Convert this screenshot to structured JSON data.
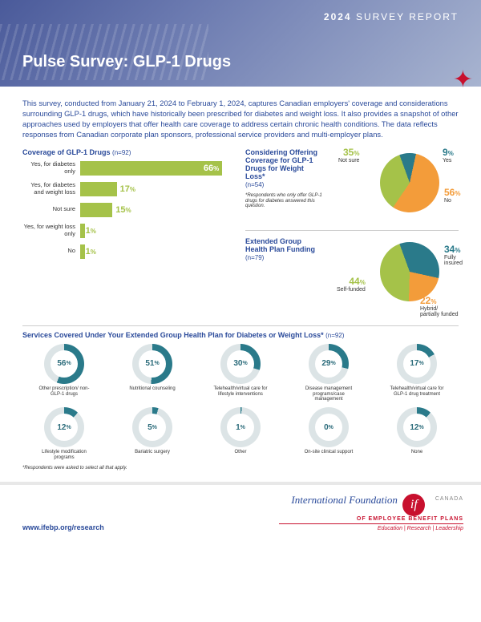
{
  "header": {
    "year": "2024",
    "label": "SURVEY REPORT",
    "title": "Pulse Survey: GLP-1 Drugs"
  },
  "intro": "This survey, conducted from January 21, 2024 to February 1, 2024, captures Canadian employers' coverage and considerations surrounding GLP-1 drugs, which have historically been prescribed for diabetes and weight loss. It also provides a snapshot of other approaches used by employers that offer health care coverage to address certain chronic health conditions. The data reflects responses from Canadian corporate plan sponsors, professional service providers and multi-employer plans.",
  "coverage": {
    "title": "Coverage of GLP-1 Drugs",
    "n": "(n=92)",
    "bar_color": "#a5c249",
    "max": 70,
    "items": [
      {
        "label": "Yes, for diabetes only",
        "value": 66,
        "inside": true
      },
      {
        "label": "Yes, for diabetes and weight loss",
        "value": 17,
        "inside": false
      },
      {
        "label": "Not sure",
        "value": 15,
        "inside": false
      },
      {
        "label": "Yes, for weight loss only",
        "value": 1,
        "inside": false
      },
      {
        "label": "No",
        "value": 1,
        "inside": false
      }
    ]
  },
  "pie1": {
    "title": "Considering Offering Coverage for GLP-1 Drugs for Weight Loss*",
    "n": "(n=54)",
    "footnote": "*Respondents who only offer GLP-1 drugs for diabetes answered this question.",
    "slices": [
      {
        "label": "Yes",
        "value": 9,
        "color": "#2a7a8a"
      },
      {
        "label": "No",
        "value": 56,
        "color": "#f39c3a"
      },
      {
        "label": "Not sure",
        "value": 35,
        "color": "#a5c249"
      }
    ]
  },
  "pie2": {
    "title": "Extended Group Health Plan Funding",
    "n": "(n=79)",
    "slices": [
      {
        "label": "Fully insured",
        "value": 34,
        "color": "#2a7a8a"
      },
      {
        "label": "Hybrid/ partially funded",
        "value": 22,
        "color": "#f39c3a"
      },
      {
        "label": "Self-funded",
        "value": 44,
        "color": "#a5c249"
      }
    ]
  },
  "services": {
    "title": "Services Covered Under Your Extended Group Health Plan for Diabetes or Weight Loss*",
    "n": "(n=92)",
    "footnote": "*Respondents were asked to select all that apply.",
    "fill_color": "#2a7a8a",
    "track_color": "#dce4e6",
    "row1": [
      {
        "label": "Other prescription/ non-GLP-1 drugs",
        "value": 56
      },
      {
        "label": "Nutritional counseling",
        "value": 51
      },
      {
        "label": "Telehealth/virtual care for lifestyle interventions",
        "value": 30
      },
      {
        "label": "Disease management programs/case management",
        "value": 29
      },
      {
        "label": "Telehealth/virtual care for GLP-1 drug treatment",
        "value": 17
      }
    ],
    "row2": [
      {
        "label": "Lifestyle modification programs",
        "value": 12
      },
      {
        "label": "Bariatric surgery",
        "value": 5
      },
      {
        "label": "Other",
        "value": 1
      },
      {
        "label": "On-site clinical support",
        "value": 0
      },
      {
        "label": "None",
        "value": 12
      }
    ]
  },
  "footer": {
    "url": "www.ifebp.org/research",
    "org": "International Foundation",
    "org_sub": "OF EMPLOYEE BENEFIT PLANS",
    "canada": "CANADA",
    "tag": "Education | Research | Leadership"
  }
}
